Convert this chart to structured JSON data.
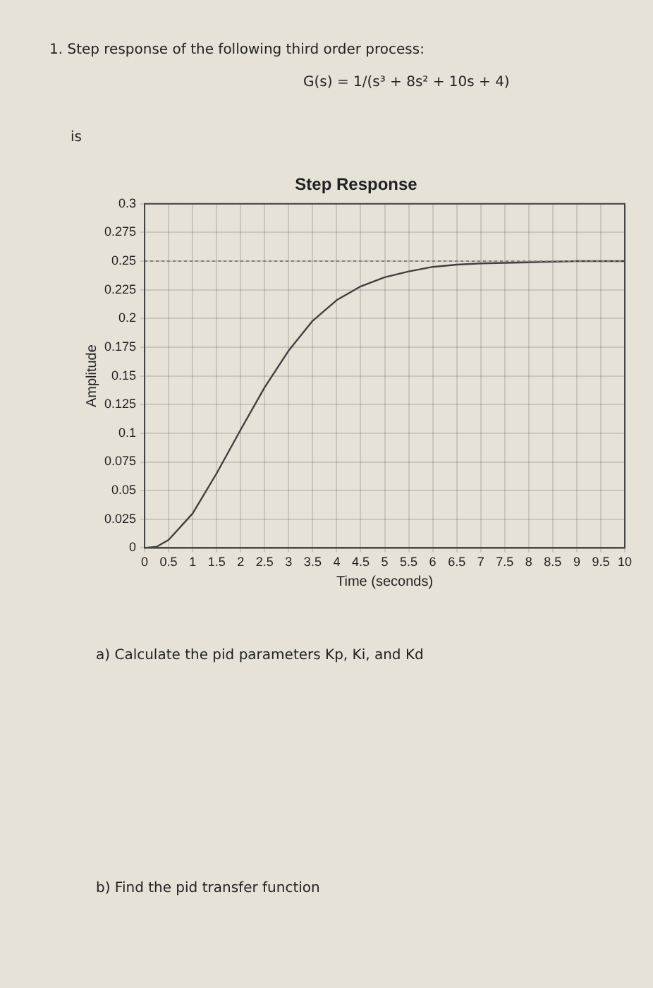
{
  "chart_data": {
    "type": "line",
    "title": "Step Response",
    "xlabel": "Time (seconds)",
    "ylabel": "Amplitude",
    "annotations": [
      "1. Step response of the following third order process:",
      "G(s) = 1/(s³ + 8s² + 10s + 4)",
      "is",
      "a) Calculate the pid parameters Kp, Ki, and Kd",
      "b) Find the pid transfer function"
    ],
    "x": [
      0,
      0.25,
      0.5,
      1,
      1.5,
      2,
      2.5,
      3,
      3.5,
      4,
      4.5,
      5,
      5.5,
      6,
      6.5,
      7,
      8,
      9,
      10
    ],
    "series": [
      {
        "color": "#404040",
        "values": [
          0,
          0.001,
          0.007,
          0.03,
          0.065,
          0.103,
          0.14,
          0.172,
          0.198,
          0.216,
          0.228,
          0.236,
          0.241,
          0.245,
          0.247,
          0.248,
          0.249,
          0.25,
          0.25
        ]
      }
    ],
    "xlim": [
      0,
      10
    ],
    "xticks": [
      0,
      0.5,
      1,
      1.5,
      2,
      2.5,
      3,
      3.5,
      4,
      4.5,
      5,
      5.5,
      6,
      6.5,
      7,
      7.5,
      8,
      8.5,
      9,
      9.5,
      10
    ],
    "ylim": [
      0,
      0.3
    ],
    "yticks": [
      0,
      0.025,
      0.05,
      0.075,
      0.1,
      0.125,
      0.15,
      0.175,
      0.2,
      0.225,
      0.25,
      0.275,
      0.3
    ],
    "ref_lines": [
      {
        "axis": "y",
        "value": 0.25,
        "line_style": "dotted",
        "color": "#808080"
      }
    ],
    "grid": true,
    "legend": false,
    "marker": "none",
    "line_style": "solid"
  }
}
